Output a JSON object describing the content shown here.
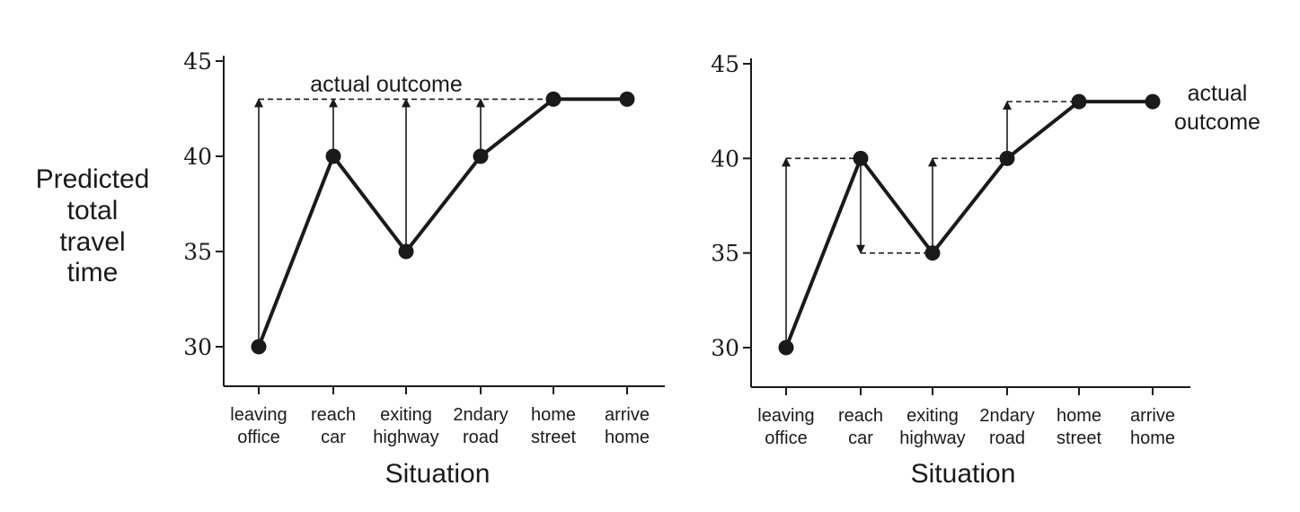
{
  "chart_data": [
    {
      "type": "line",
      "categories": [
        [
          "leaving",
          "office"
        ],
        [
          "reach",
          "car"
        ],
        [
          "exiting",
          "highway"
        ],
        [
          "2ndary",
          "road"
        ],
        [
          "home",
          "street"
        ],
        [
          "arrive",
          "home"
        ]
      ],
      "series": [
        {
          "values": [
            30,
            40,
            35,
            40,
            43,
            43
          ]
        }
      ],
      "ylabel": [
        "Predicted",
        "total",
        "travel",
        "time"
      ],
      "xlabel": "Situation",
      "yticks": [
        30,
        35,
        40,
        45
      ],
      "ylim": [
        28,
        45
      ],
      "annotation": [
        "actual outcome"
      ],
      "actual_outcome": 43,
      "update_arrows": [
        {
          "category": 0,
          "from": 30,
          "to": 43
        },
        {
          "category": 1,
          "from": 40,
          "to": 43
        },
        {
          "category": 2,
          "from": 35,
          "to": 43
        },
        {
          "category": 3,
          "from": 40,
          "to": 43
        }
      ],
      "dashed_lines": [
        {
          "from_category": 0,
          "to_category": 4,
          "value": 43
        }
      ]
    },
    {
      "type": "line",
      "categories": [
        [
          "leaving",
          "office"
        ],
        [
          "reach",
          "car"
        ],
        [
          "exiting",
          "highway"
        ],
        [
          "2ndary",
          "road"
        ],
        [
          "home",
          "street"
        ],
        [
          "arrive",
          "home"
        ]
      ],
      "series": [
        {
          "values": [
            30,
            40,
            35,
            40,
            43,
            43
          ]
        }
      ],
      "ylabel": [],
      "xlabel": "Situation",
      "yticks": [
        30,
        35,
        40,
        45
      ],
      "ylim": [
        28,
        45
      ],
      "annotation": [
        "actual",
        "outcome"
      ],
      "actual_outcome": 43,
      "update_arrows": [
        {
          "category": 0,
          "from": 30,
          "to": 40
        },
        {
          "category": 1,
          "from": 40,
          "to": 35
        },
        {
          "category": 2,
          "from": 35,
          "to": 40
        },
        {
          "category": 3,
          "from": 40,
          "to": 43
        }
      ],
      "dashed_lines": [
        {
          "from_category": 0,
          "to_category": 1,
          "value": 40
        },
        {
          "from_category": 1,
          "to_category": 2,
          "value": 35
        },
        {
          "from_category": 2,
          "to_category": 3,
          "value": 40
        },
        {
          "from_category": 3,
          "to_category": 4,
          "value": 43
        }
      ]
    }
  ]
}
